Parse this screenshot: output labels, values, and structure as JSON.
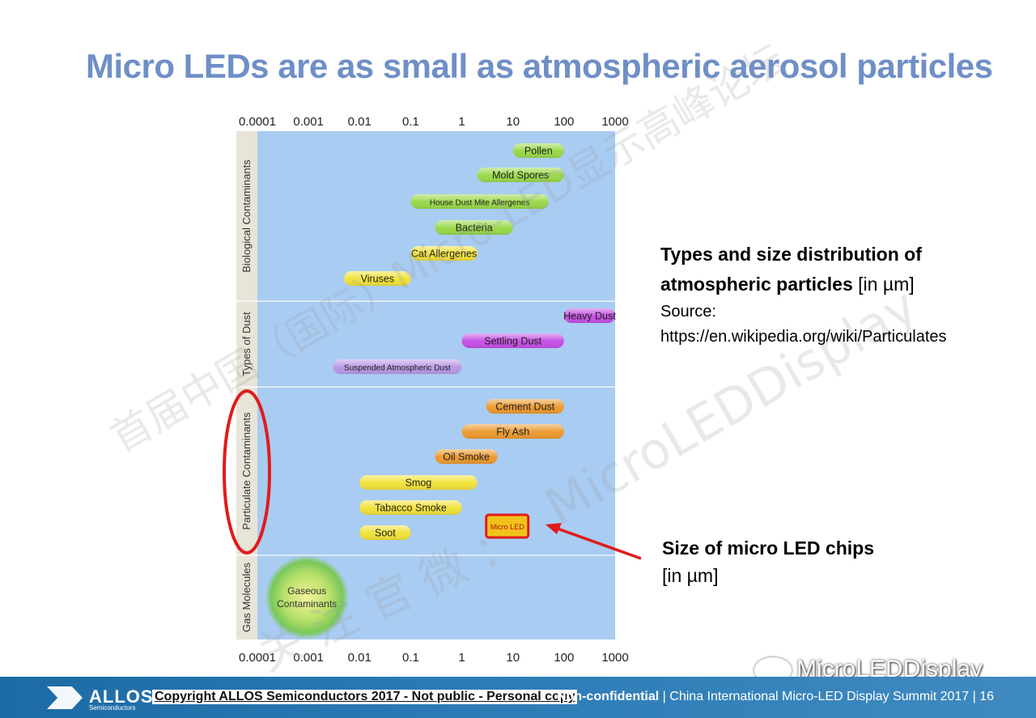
{
  "slide_title": "Micro LEDs are as small as atmospheric aerosol particles",
  "annotations": {
    "types_title_bold": "Types and size distribution of atmospheric particles",
    "types_unit": " [in µm]",
    "source_label": "Source:",
    "source_url": "https://en.wikipedia.org/wiki/Particulates",
    "micro_title_bold": "Size of micro LED chips",
    "micro_unit": "[in µm]"
  },
  "footer": {
    "logo_text": "ALLOS",
    "logo_sub": "Semiconductors",
    "copyright": "Copyright ALLOS Semiconductors 2017 - Not public - Personal copy",
    "nonconf": "Non-confidential",
    "event": " | China International Micro-LED Display Summit  2017 | 16"
  },
  "watermarks": {
    "diagonal_1": "首届中国（国际）Micro-LED显示高峰论坛",
    "diagonal_2": "MicroLEDDisplay",
    "vertical": "关 注 官 微 ：",
    "wechat": "MicroLEDDisplay"
  },
  "colors": {
    "plot_bg": "#a9ccf2",
    "green": "#9ad84a",
    "yellow": "#f1e23a",
    "magenta": "#c64fe4",
    "purple": "#b89ae6",
    "orange": "#ec9a30",
    "highlight_red": "#e01b1b",
    "title_blue": "#6f8fc7"
  },
  "chart_data": {
    "type": "bar",
    "orientation": "horizontal-range",
    "x_scale": "log",
    "xlim": [
      0.0001,
      1000
    ],
    "x_ticks": [
      "0.0001",
      "0.001",
      "0.01",
      "0.1",
      "1",
      "10",
      "100",
      "1000"
    ],
    "groups": [
      {
        "name": "Biological Contaminants",
        "highlighted": false
      },
      {
        "name": "Types of Dust",
        "highlighted": false
      },
      {
        "name": "Particulate Contaminants",
        "highlighted": true
      },
      {
        "name": "Gas Molecules",
        "highlighted": false
      }
    ],
    "bars": [
      {
        "label": "Pollen",
        "group": 0,
        "min": 10,
        "max": 100,
        "color": "green"
      },
      {
        "label": "Mold Spores",
        "group": 0,
        "min": 2,
        "max": 100,
        "color": "green"
      },
      {
        "label": "House Dust Mite Allergenes",
        "group": 0,
        "min": 0.1,
        "max": 50,
        "color": "green"
      },
      {
        "label": "Bacteria",
        "group": 0,
        "min": 0.3,
        "max": 10,
        "color": "green"
      },
      {
        "label": "Cat Allergenes",
        "group": 0,
        "min": 0.1,
        "max": 2,
        "color": "yellow"
      },
      {
        "label": "Viruses",
        "group": 0,
        "min": 0.005,
        "max": 0.1,
        "color": "yellow"
      },
      {
        "label": "Heavy Dust",
        "group": 1,
        "min": 100,
        "max": 1000,
        "color": "magenta"
      },
      {
        "label": "Settling Dust",
        "group": 1,
        "min": 1,
        "max": 100,
        "color": "magenta"
      },
      {
        "label": "Suspended Atmospheric Dust",
        "group": 1,
        "min": 0.003,
        "max": 1,
        "color": "purple"
      },
      {
        "label": "Cement Dust",
        "group": 2,
        "min": 3,
        "max": 100,
        "color": "orange"
      },
      {
        "label": "Fly Ash",
        "group": 2,
        "min": 1,
        "max": 100,
        "color": "orange"
      },
      {
        "label": "Oil Smoke",
        "group": 2,
        "min": 0.3,
        "max": 5,
        "color": "orange"
      },
      {
        "label": "Smog",
        "group": 2,
        "min": 0.01,
        "max": 2,
        "color": "yellow"
      },
      {
        "label": "Tabacco Smoke",
        "group": 2,
        "min": 0.01,
        "max": 1,
        "color": "yellow"
      },
      {
        "label": "Soot",
        "group": 2,
        "min": 0.01,
        "max": 0.1,
        "color": "yellow"
      },
      {
        "label": "Micro LED",
        "group": 2,
        "min": 3,
        "max": 20,
        "color": "highlight_red",
        "highlight": true
      }
    ],
    "bubble": {
      "label_line1": "Gaseous",
      "label_line2": "Contaminants",
      "group": 3,
      "center": 0.001
    }
  }
}
